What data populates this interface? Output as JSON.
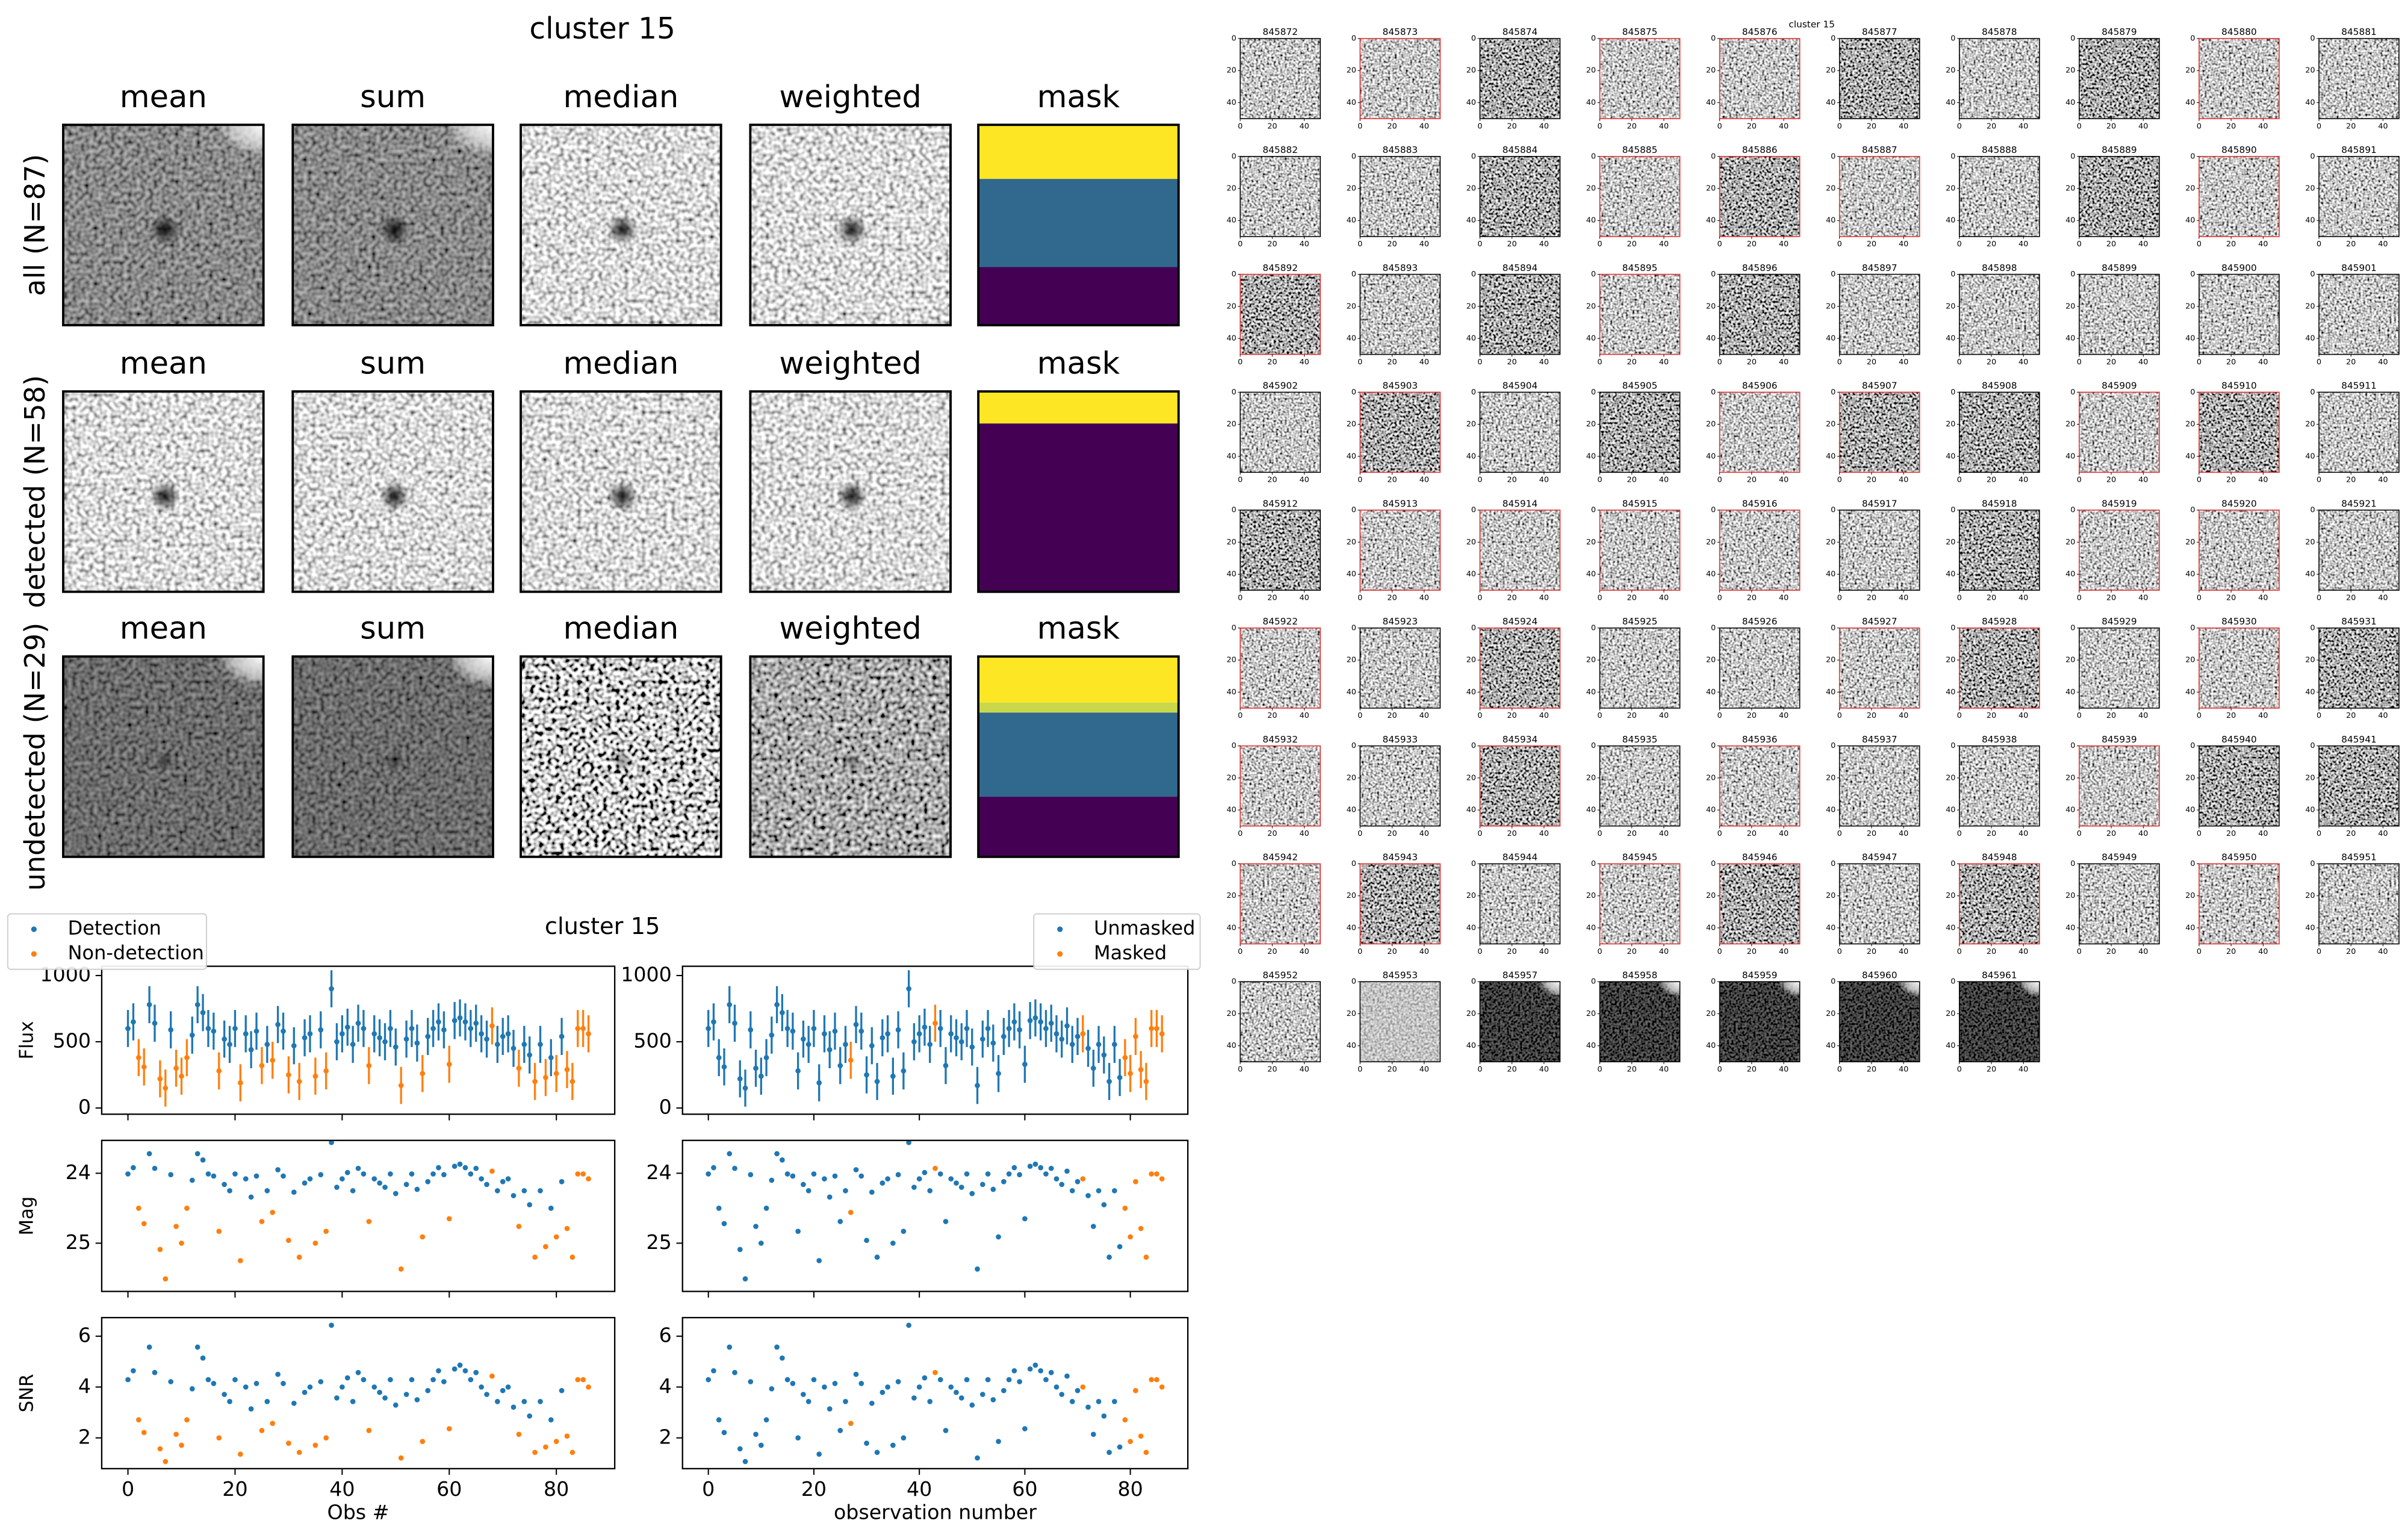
{
  "cutouts": {
    "title": "cluster 15",
    "columns": [
      "mean",
      "sum",
      "median",
      "weighted",
      "mask"
    ],
    "rows": [
      "all (N=87)",
      "detected (N=58)",
      "undetected (N=29)"
    ]
  },
  "lightcurve": {
    "title": "cluster 15",
    "x": [
      0,
      1,
      2,
      3,
      4,
      5,
      6,
      7,
      8,
      9,
      10,
      11,
      12,
      13,
      14,
      15,
      16,
      17,
      18,
      19,
      20,
      21,
      22,
      23,
      24,
      25,
      26,
      27,
      28,
      29,
      30,
      31,
      32,
      33,
      34,
      35,
      36,
      37,
      38,
      39,
      40,
      41,
      42,
      43,
      44,
      45,
      46,
      47,
      48,
      49,
      50,
      51,
      52,
      53,
      54,
      55,
      56,
      57,
      58,
      59,
      60,
      61,
      62,
      63,
      64,
      65,
      66,
      67,
      68,
      69,
      70,
      71,
      72,
      73,
      74,
      75,
      76,
      77,
      78,
      79,
      80,
      81,
      82,
      83,
      84,
      85,
      86
    ],
    "xlim": [
      -4.9,
      90.9
    ],
    "xticks": [
      0,
      20,
      40,
      60,
      80
    ],
    "columns": [
      {
        "xlabel": "Obs #",
        "legend": {
          "corner": "upper left",
          "entries": [
            {
              "name": "Detection",
              "color": "#1f77b4"
            },
            {
              "name": "Non-detection",
              "color": "#ff7f0e"
            }
          ]
        },
        "groups": [
          0,
          0,
          1,
          1,
          0,
          0,
          1,
          1,
          0,
          1,
          1,
          1,
          0,
          0,
          0,
          0,
          0,
          1,
          0,
          0,
          0,
          1,
          0,
          0,
          0,
          1,
          0,
          1,
          0,
          0,
          1,
          0,
          1,
          0,
          0,
          1,
          0,
          1,
          0,
          0,
          0,
          0,
          0,
          0,
          0,
          1,
          0,
          0,
          0,
          0,
          0,
          1,
          0,
          0,
          0,
          1,
          0,
          0,
          0,
          0,
          1,
          0,
          0,
          0,
          0,
          0,
          0,
          0,
          1,
          0,
          0,
          0,
          0,
          1,
          0,
          0,
          1,
          0,
          1,
          0,
          1,
          0,
          1,
          1,
          1,
          1,
          1
        ]
      },
      {
        "xlabel": "observation number",
        "legend": {
          "corner": "upper right",
          "entries": [
            {
              "name": "Unmasked",
              "color": "#1f77b4"
            },
            {
              "name": "Masked",
              "color": "#ff7f0e"
            }
          ]
        },
        "groups": [
          0,
          0,
          0,
          0,
          0,
          0,
          0,
          0,
          0,
          0,
          0,
          0,
          0,
          0,
          0,
          0,
          0,
          0,
          0,
          0,
          0,
          0,
          0,
          0,
          0,
          0,
          0,
          1,
          0,
          0,
          0,
          0,
          0,
          0,
          0,
          0,
          0,
          0,
          0,
          0,
          0,
          0,
          0,
          1,
          0,
          0,
          0,
          0,
          0,
          0,
          0,
          0,
          0,
          0,
          0,
          0,
          0,
          0,
          0,
          0,
          0,
          0,
          0,
          0,
          0,
          0,
          0,
          0,
          0,
          0,
          0,
          1,
          0,
          0,
          0,
          0,
          0,
          0,
          0,
          1,
          1,
          1,
          1,
          1,
          1,
          1,
          1
        ]
      }
    ],
    "panels": [
      {
        "type": "scatter",
        "ylabel": "Flux",
        "ylim": [
          -47,
          1070
        ],
        "yticks": [
          0,
          500,
          1000
        ],
        "values": [
          600,
          650,
          380,
          310,
          780,
          640,
          220,
          150,
          590,
          300,
          240,
          380,
          550,
          780,
          720,
          600,
          580,
          280,
          520,
          480,
          600,
          190,
          560,
          440,
          580,
          320,
          480,
          360,
          630,
          580,
          250,
          470,
          200,
          530,
          560,
          240,
          590,
          280,
          900,
          500,
          560,
          610,
          480,
          640,
          600,
          320,
          560,
          530,
          500,
          600,
          460,
          170,
          520,
          600,
          490,
          260,
          540,
          600,
          650,
          590,
          330,
          660,
          680,
          650,
          600,
          640,
          560,
          520,
          620,
          480,
          540,
          560,
          450,
          300,
          480,
          400,
          200,
          480,
          230,
          380,
          260,
          540,
          290,
          200,
          600,
          600,
          560
        ],
        "errors": [
          140,
          140,
          140,
          140,
          140,
          140,
          140,
          140,
          140,
          140,
          140,
          140,
          140,
          140,
          140,
          140,
          140,
          140,
          140,
          140,
          140,
          140,
          140,
          140,
          140,
          140,
          140,
          140,
          140,
          140,
          140,
          140,
          140,
          140,
          140,
          140,
          140,
          140,
          140,
          140,
          140,
          140,
          140,
          140,
          140,
          140,
          140,
          140,
          140,
          140,
          140,
          140,
          140,
          140,
          140,
          140,
          140,
          140,
          140,
          140,
          140,
          140,
          140,
          140,
          140,
          140,
          140,
          140,
          140,
          140,
          140,
          140,
          140,
          140,
          140,
          140,
          140,
          140,
          140,
          140,
          140,
          140,
          140,
          140,
          140,
          140,
          140
        ]
      },
      {
        "type": "scatter",
        "ylabel": "Mag",
        "ylim": [
          23.53,
          25.69
        ],
        "inverted": true,
        "yticks": [
          24,
          25
        ],
        "values": [
          24.01,
          23.92,
          24.5,
          24.72,
          23.72,
          23.93,
          25.09,
          25.51,
          24.02,
          24.76,
          25.0,
          24.5,
          24.1,
          23.72,
          23.81,
          24.01,
          24.04,
          24.83,
          24.16,
          24.25,
          24.01,
          25.25,
          24.08,
          24.34,
          24.04,
          24.69,
          24.25,
          24.56,
          23.95,
          24.04,
          24.96,
          24.27,
          25.2,
          24.14,
          24.08,
          25.0,
          24.02,
          24.83,
          23.56,
          24.2,
          24.08,
          23.99,
          24.25,
          23.93,
          24.01,
          24.69,
          24.08,
          24.14,
          24.2,
          24.01,
          24.29,
          25.37,
          24.16,
          24.01,
          24.23,
          24.91,
          24.12,
          24.01,
          23.92,
          24.02,
          24.65,
          23.9,
          23.87,
          23.92,
          24.01,
          23.93,
          24.08,
          24.16,
          23.97,
          24.25,
          24.12,
          24.08,
          24.32,
          24.76,
          24.25,
          24.45,
          25.2,
          24.25,
          25.05,
          24.5,
          24.91,
          24.12,
          24.79,
          25.2,
          24.01,
          24.01,
          24.08
        ]
      },
      {
        "type": "scatter",
        "ylabel": "SNR",
        "ylim": [
          0.79,
          6.73
        ],
        "yticks": [
          2,
          4,
          6
        ],
        "values": [
          4.29,
          4.64,
          2.71,
          2.21,
          5.57,
          4.57,
          1.57,
          1.07,
          4.21,
          2.14,
          1.71,
          2.71,
          3.93,
          5.57,
          5.14,
          4.29,
          4.14,
          2.0,
          3.71,
          3.43,
          4.29,
          1.36,
          4.0,
          3.14,
          4.14,
          2.29,
          3.43,
          2.57,
          4.5,
          4.14,
          1.79,
          3.36,
          1.43,
          3.79,
          4.0,
          1.71,
          4.21,
          2.0,
          6.43,
          3.57,
          4.0,
          4.36,
          3.43,
          4.57,
          4.29,
          2.29,
          4.0,
          3.79,
          3.57,
          4.29,
          3.29,
          1.21,
          3.71,
          4.29,
          3.5,
          1.86,
          3.86,
          4.29,
          4.64,
          4.21,
          2.36,
          4.71,
          4.86,
          4.64,
          4.29,
          4.57,
          4.0,
          3.71,
          4.43,
          3.43,
          3.86,
          4.0,
          3.21,
          2.14,
          3.43,
          2.86,
          1.43,
          3.43,
          1.64,
          2.71,
          1.86,
          3.86,
          2.07,
          1.43,
          4.29,
          4.29,
          4.0
        ]
      }
    ]
  },
  "thumbnails": {
    "title": "cluster 15",
    "lim": [
      0,
      50
    ],
    "ticks": [
      0,
      20,
      40
    ],
    "items": [
      {
        "id": "845872",
        "frame": "#000000",
        "shade": "noise"
      },
      {
        "id": "845873",
        "frame": "#e03030",
        "shade": "noise"
      },
      {
        "id": "845874",
        "frame": "#000000",
        "shade": "heavy"
      },
      {
        "id": "845875",
        "frame": "#e03030",
        "shade": "noise"
      },
      {
        "id": "845876",
        "frame": "#e03030",
        "shade": "noise"
      },
      {
        "id": "845877",
        "frame": "#000000",
        "shade": "heavy"
      },
      {
        "id": "845878",
        "frame": "#000000",
        "shade": "noise"
      },
      {
        "id": "845879",
        "frame": "#000000",
        "shade": "heavy"
      },
      {
        "id": "845880",
        "frame": "#e03030",
        "shade": "noise"
      },
      {
        "id": "845881",
        "frame": "#000000",
        "shade": "noise"
      },
      {
        "id": "845882",
        "frame": "#000000",
        "shade": "noise"
      },
      {
        "id": "845883",
        "frame": "#000000",
        "shade": "noise"
      },
      {
        "id": "845884",
        "frame": "#000000",
        "shade": "heavy"
      },
      {
        "id": "845885",
        "frame": "#e03030",
        "shade": "noise"
      },
      {
        "id": "845886",
        "frame": "#e03030",
        "shade": "heavy"
      },
      {
        "id": "845887",
        "frame": "#e03030",
        "shade": "noise"
      },
      {
        "id": "845888",
        "frame": "#000000",
        "shade": "noise"
      },
      {
        "id": "845889",
        "frame": "#000000",
        "shade": "heavy"
      },
      {
        "id": "845890",
        "frame": "#e03030",
        "shade": "noise"
      },
      {
        "id": "845891",
        "frame": "#000000",
        "shade": "noise"
      },
      {
        "id": "845892",
        "frame": "#e03030",
        "shade": "heavy"
      },
      {
        "id": "845893",
        "frame": "#000000",
        "shade": "noise"
      },
      {
        "id": "845894",
        "frame": "#000000",
        "shade": "heavy"
      },
      {
        "id": "845895",
        "frame": "#e03030",
        "shade": "noise"
      },
      {
        "id": "845896",
        "frame": "#000000",
        "shade": "heavy"
      },
      {
        "id": "845897",
        "frame": "#000000",
        "shade": "noise"
      },
      {
        "id": "845898",
        "frame": "#000000",
        "shade": "noise"
      },
      {
        "id": "845899",
        "frame": "#000000",
        "shade": "noise"
      },
      {
        "id": "845900",
        "frame": "#000000",
        "shade": "noise"
      },
      {
        "id": "845901",
        "frame": "#000000",
        "shade": "noise"
      },
      {
        "id": "845902",
        "frame": "#000000",
        "shade": "noise"
      },
      {
        "id": "845903",
        "frame": "#e03030",
        "shade": "heavy"
      },
      {
        "id": "845904",
        "frame": "#000000",
        "shade": "noise"
      },
      {
        "id": "845905",
        "frame": "#000000",
        "shade": "heavy"
      },
      {
        "id": "845906",
        "frame": "#e03030",
        "shade": "noise"
      },
      {
        "id": "845907",
        "frame": "#e03030",
        "shade": "heavy"
      },
      {
        "id": "845908",
        "frame": "#000000",
        "shade": "heavy"
      },
      {
        "id": "845909",
        "frame": "#e03030",
        "shade": "noise"
      },
      {
        "id": "845910",
        "frame": "#e03030",
        "shade": "heavy"
      },
      {
        "id": "845911",
        "frame": "#000000",
        "shade": "noise"
      },
      {
        "id": "845912",
        "frame": "#000000",
        "shade": "heavy"
      },
      {
        "id": "845913",
        "frame": "#e03030",
        "shade": "noise"
      },
      {
        "id": "845914",
        "frame": "#e03030",
        "shade": "noise"
      },
      {
        "id": "845915",
        "frame": "#e03030",
        "shade": "noise"
      },
      {
        "id": "845916",
        "frame": "#e03030",
        "shade": "noise"
      },
      {
        "id": "845917",
        "frame": "#000000",
        "shade": "noise"
      },
      {
        "id": "845918",
        "frame": "#000000",
        "shade": "heavy"
      },
      {
        "id": "845919",
        "frame": "#e03030",
        "shade": "noise"
      },
      {
        "id": "845920",
        "frame": "#e03030",
        "shade": "noise"
      },
      {
        "id": "845921",
        "frame": "#000000",
        "shade": "noise"
      },
      {
        "id": "845922",
        "frame": "#e03030",
        "shade": "noise"
      },
      {
        "id": "845923",
        "frame": "#000000",
        "shade": "noise"
      },
      {
        "id": "845924",
        "frame": "#e03030",
        "shade": "heavy"
      },
      {
        "id": "845925",
        "frame": "#000000",
        "shade": "noise"
      },
      {
        "id": "845926",
        "frame": "#000000",
        "shade": "noise"
      },
      {
        "id": "845927",
        "frame": "#e03030",
        "shade": "noise"
      },
      {
        "id": "845928",
        "frame": "#e03030",
        "shade": "heavy"
      },
      {
        "id": "845929",
        "frame": "#000000",
        "shade": "noise"
      },
      {
        "id": "845930",
        "frame": "#e03030",
        "shade": "noise"
      },
      {
        "id": "845931",
        "frame": "#000000",
        "shade": "heavy"
      },
      {
        "id": "845932",
        "frame": "#e03030",
        "shade": "noise"
      },
      {
        "id": "845933",
        "frame": "#000000",
        "shade": "noise"
      },
      {
        "id": "845934",
        "frame": "#e03030",
        "shade": "heavy"
      },
      {
        "id": "845935",
        "frame": "#000000",
        "shade": "noise"
      },
      {
        "id": "845936",
        "frame": "#e03030",
        "shade": "noise"
      },
      {
        "id": "845937",
        "frame": "#000000",
        "shade": "noise"
      },
      {
        "id": "845938",
        "frame": "#000000",
        "shade": "noise"
      },
      {
        "id": "845939",
        "frame": "#e03030",
        "shade": "noise"
      },
      {
        "id": "845940",
        "frame": "#000000",
        "shade": "heavy"
      },
      {
        "id": "845941",
        "frame": "#000000",
        "shade": "heavy"
      },
      {
        "id": "845942",
        "frame": "#e03030",
        "shade": "noise"
      },
      {
        "id": "845943",
        "frame": "#e03030",
        "shade": "heavy"
      },
      {
        "id": "845944",
        "frame": "#000000",
        "shade": "noise"
      },
      {
        "id": "845945",
        "frame": "#e03030",
        "shade": "noise"
      },
      {
        "id": "845946",
        "frame": "#e03030",
        "shade": "heavy"
      },
      {
        "id": "845947",
        "frame": "#000000",
        "shade": "noise"
      },
      {
        "id": "845948",
        "frame": "#e03030",
        "shade": "heavy"
      },
      {
        "id": "845949",
        "frame": "#000000",
        "shade": "noise"
      },
      {
        "id": "845950",
        "frame": "#e03030",
        "shade": "noise"
      },
      {
        "id": "845951",
        "frame": "#000000",
        "shade": "noise"
      },
      {
        "id": "845952",
        "frame": "#000000",
        "shade": "noise"
      },
      {
        "id": "845953",
        "frame": "#000000",
        "shade": "faint"
      },
      {
        "id": "845957",
        "frame": "#000000",
        "shade": "dark"
      },
      {
        "id": "845958",
        "frame": "#000000",
        "shade": "dark"
      },
      {
        "id": "845959",
        "frame": "#000000",
        "shade": "dark"
      },
      {
        "id": "845960",
        "frame": "#000000",
        "shade": "dark"
      },
      {
        "id": "845961",
        "frame": "#000000",
        "shade": "dark"
      }
    ]
  }
}
